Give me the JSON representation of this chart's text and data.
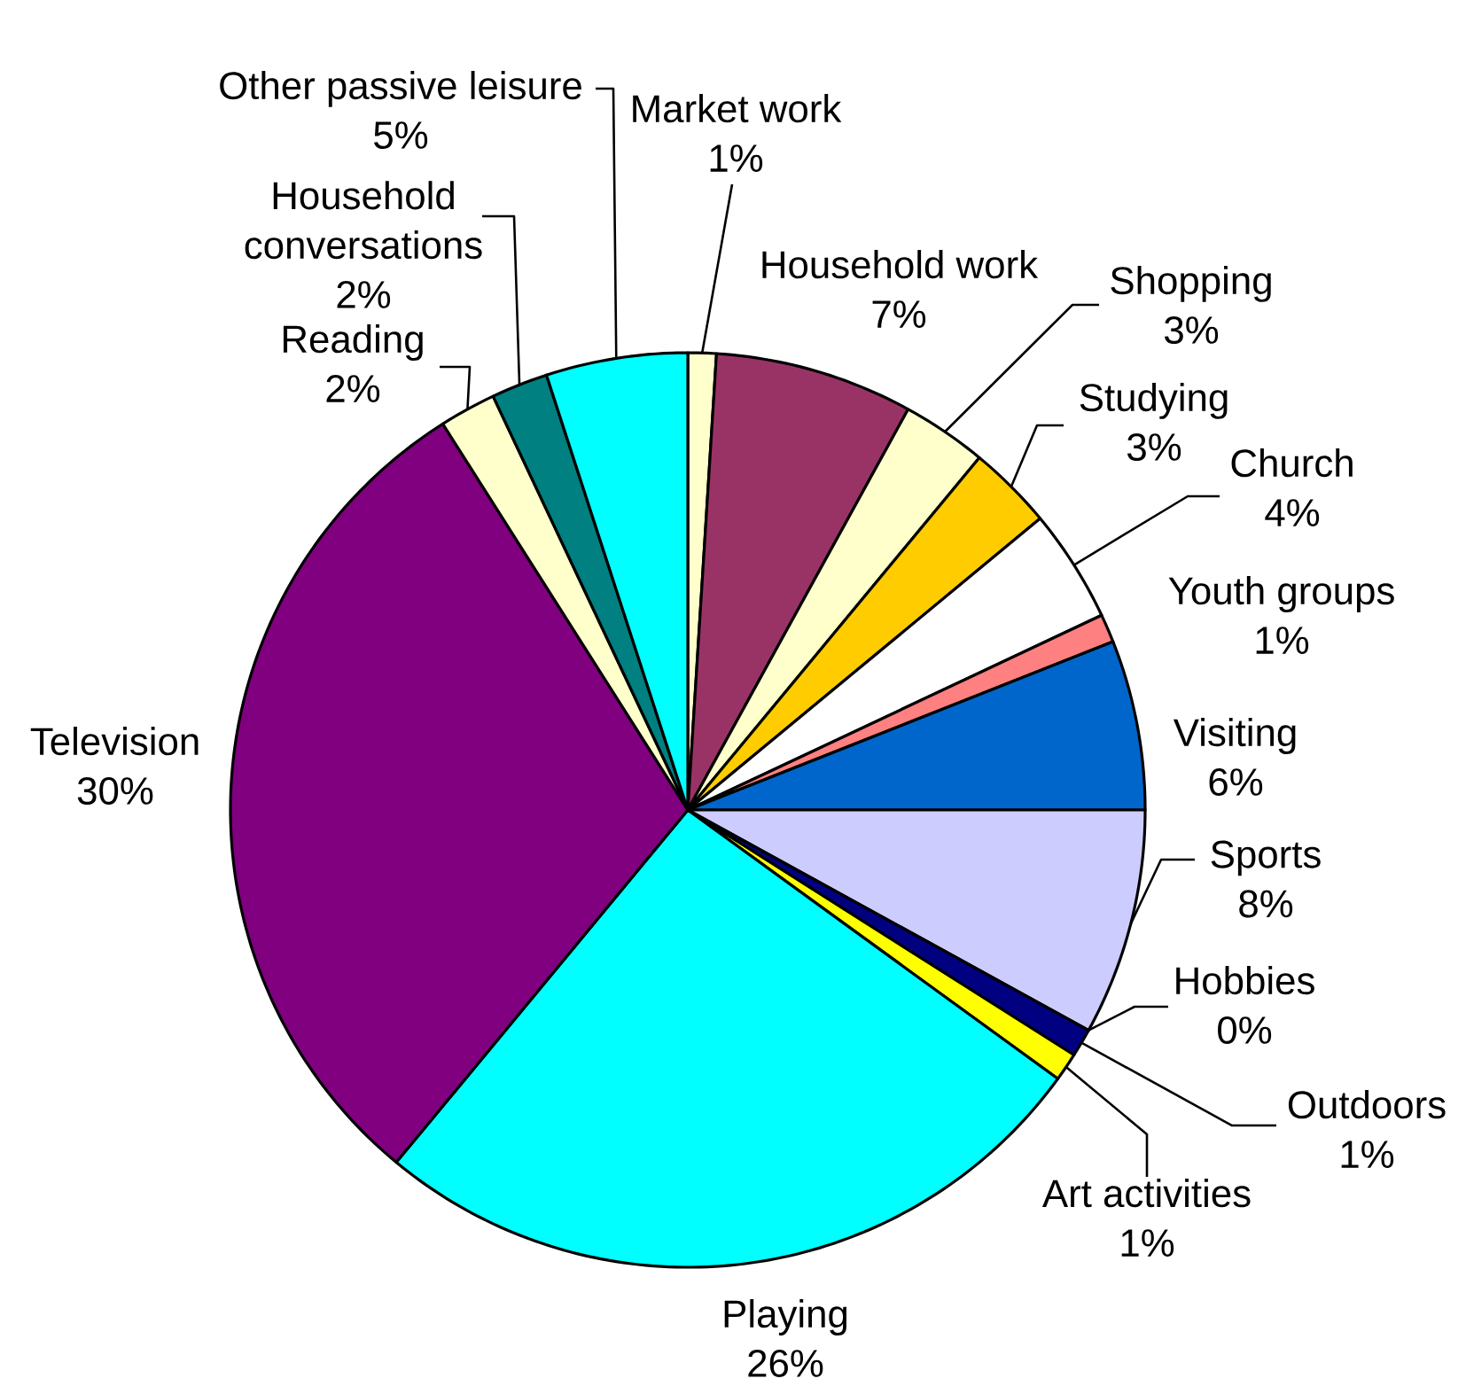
{
  "chart_data": {
    "type": "pie",
    "categories": [
      "Market work",
      "Household work",
      "Shopping",
      "Studying",
      "Church",
      "Youth groups",
      "Visiting",
      "Sports",
      "Hobbies",
      "Outdoors",
      "Art activities",
      "Playing",
      "Television",
      "Reading",
      "Household conversations",
      "Other passive leisure"
    ],
    "values": [
      1,
      7,
      3,
      3,
      4,
      1,
      6,
      8,
      0,
      1,
      1,
      26,
      30,
      2,
      2,
      5
    ],
    "value_labels": [
      "1%",
      "7%",
      "3%",
      "3%",
      "4%",
      "1%",
      "6%",
      "8%",
      "0%",
      "1%",
      "1%",
      "26%",
      "30%",
      "2%",
      "2%",
      "5%"
    ],
    "colors": [
      "#ffffcc",
      "#993366",
      "#ffffcc",
      "#ffcc00",
      "#ffffff",
      "#ff8080",
      "#0066cc",
      "#ccccff",
      "#ffffff",
      "#000080",
      "#ffff00",
      "#00ffff",
      "#800080",
      "#ffffcc",
      "#008080",
      "#00ffff"
    ]
  }
}
